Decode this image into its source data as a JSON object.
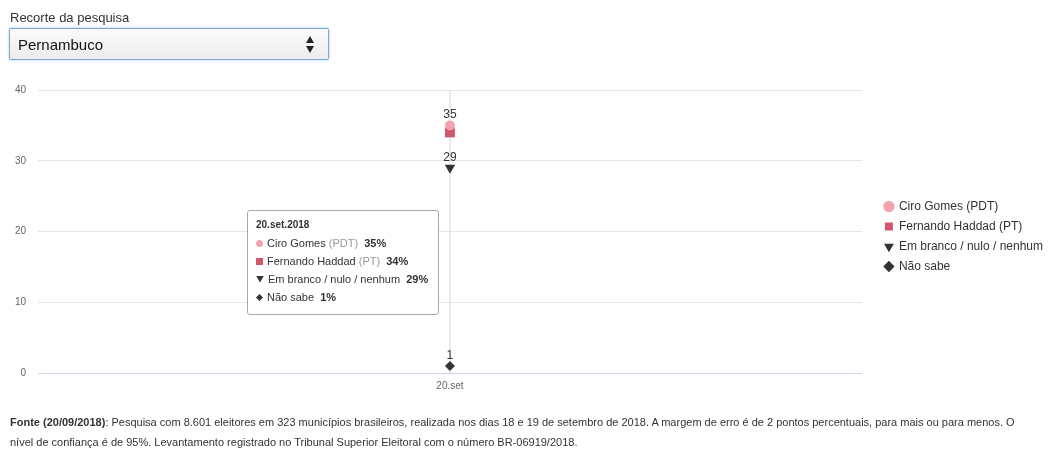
{
  "chart_data": {
    "type": "line",
    "categories": [
      "20.set"
    ],
    "series": [
      {
        "name": "Ciro Gomes (PDT)",
        "color": "#f4a3ae",
        "marker": "circle",
        "values": [
          35
        ],
        "value_labels": [
          "35"
        ]
      },
      {
        "name": "Fernando Haddad (PT)",
        "color": "#d4566b",
        "marker": "square",
        "values": [
          34
        ],
        "value_labels": [
          null
        ]
      },
      {
        "name": "Em branco / nulo / nenhum",
        "color": "#333333",
        "marker": "triangle",
        "values": [
          29
        ],
        "value_labels": [
          "29"
        ]
      },
      {
        "name": "Não sabe",
        "color": "#333333",
        "marker": "diamond",
        "values": [
          1
        ],
        "value_labels": [
          "1"
        ]
      }
    ],
    "ylim": [
      0,
      40
    ],
    "yticks": [
      0,
      10,
      20,
      30,
      40
    ],
    "grid": "y",
    "legend": "right",
    "ref_lines": [
      {
        "axis": "x",
        "value": "20.set",
        "color": "#d6d6d6"
      }
    ],
    "annotations": [
      "Recorte da pesquisa",
      "Pernambuco",
      "20.set.2018",
      "Ciro Gomes (PDT) 35%",
      "Fernando Haddad (PT) 34%",
      "Em branco / nulo / nenhum 29%",
      "Não sabe 1%",
      "Fonte (20/09/2018): Pesquisa com 8.601 eleitores em 323 municípios brasileiros, realizada nos dias 18 e 19 de setembro de 2018. A margem de erro é de 2 pontos percentuais, para mais ou para menos. O nível de confiança é de 95%. Levantamento registrado no Tribunal Superior Eleitoral com o número BR-06919/2018."
    ]
  }
}
